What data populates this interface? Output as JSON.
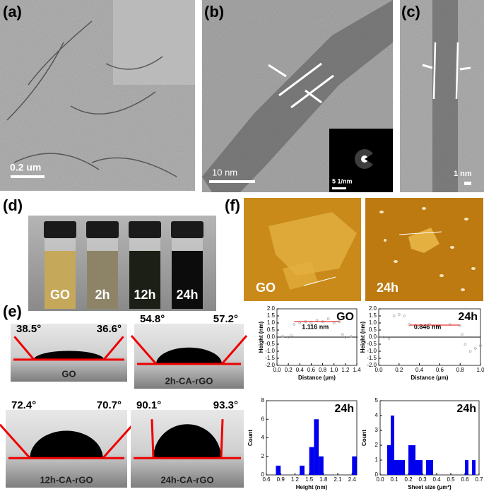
{
  "panels": {
    "a": {
      "label": "(a)",
      "scale": "0.2 um"
    },
    "b": {
      "label": "(b)",
      "scale": "10 nm",
      "inset": "5 1/nm"
    },
    "c": {
      "label": "(c)",
      "scale": "1 nm"
    },
    "d": {
      "label": "(d)",
      "vials": [
        "GO",
        "2h",
        "12h",
        "24h"
      ]
    },
    "e": {
      "label": "(e)",
      "drops": [
        {
          "name": "GO",
          "left": "38.5°",
          "right": "36.6°"
        },
        {
          "name": "2h-CA-rGO",
          "left": "54.8°",
          "right": "57.2°"
        },
        {
          "name": "12h-CA-rGO",
          "left": "72.4°",
          "right": "70.7°"
        },
        {
          "name": "24h-CA-rGO",
          "left": "90.1°",
          "right": "93.3°"
        }
      ]
    },
    "f": {
      "label": "(f)",
      "afm": [
        "GO",
        "24h"
      ]
    }
  },
  "chart_data": [
    {
      "type": "line",
      "title": "GO",
      "annotation": "1.116 nm",
      "x_label": "Distance (μm)",
      "y_label": "Height (nm)",
      "xlim": [
        0,
        1.4
      ],
      "ylim": [
        -2,
        2
      ],
      "xticks": [
        {
          "value": 0,
          "label": "0.0"
        },
        0.2,
        0.4,
        0.6,
        0.8,
        {
          "value": 1,
          "label": "1.0"
        },
        1.2,
        1.4
      ],
      "yticks": [
        {
          "value": -2,
          "label": "-2.0"
        },
        -1.5,
        {
          "value": -1,
          "label": "-1.0"
        },
        -0.5,
        {
          "value": 0,
          "label": "0.0"
        },
        0.5,
        {
          "value": 1,
          "label": "1.0"
        },
        1.5,
        {
          "value": 2,
          "label": "2.0"
        }
      ],
      "series": [
        {
          "color": "#000000",
          "x": [
            0,
            1.4
          ],
          "values": [
            0,
            0
          ]
        },
        {
          "color": "#999999",
          "markers": true,
          "x": [
            0,
            0.1,
            0.2,
            0.25,
            0.3,
            0.4,
            0.5,
            0.6,
            0.7,
            0.8,
            0.9,
            1.0,
            1.1,
            1.15,
            1.2,
            1.3,
            1.4
          ],
          "values": [
            0,
            0.05,
            0,
            0.1,
            0.9,
            1.0,
            1.1,
            1.0,
            1.2,
            1.1,
            1.3,
            1.0,
            1.1,
            0.2,
            0,
            0.05,
            0
          ]
        },
        {
          "color": "#e00000",
          "x": [
            0.3,
            1.1
          ],
          "values": [
            1.1,
            1.1
          ]
        }
      ]
    },
    {
      "type": "line",
      "title": "24h",
      "annotation": "0.846 nm",
      "x_label": "Distance (μm)",
      "y_label": "Height (nm)",
      "xlim": [
        0,
        1
      ],
      "ylim": [
        -2,
        2
      ],
      "xticks": [
        {
          "value": 0,
          "label": "0.0"
        },
        0.2,
        0.4,
        0.6,
        0.8,
        {
          "value": 1,
          "label": "1.0"
        }
      ],
      "yticks": [
        {
          "value": -2,
          "label": "-2.0"
        },
        -1.5,
        {
          "value": -1,
          "label": "-1.0"
        },
        -0.5,
        {
          "value": 0,
          "label": "0.0"
        },
        0.5,
        {
          "value": 1,
          "label": "1.0"
        },
        1.5,
        {
          "value": 2,
          "label": "2.0"
        }
      ],
      "series": [
        {
          "color": "#000000",
          "x": [
            0,
            1
          ],
          "values": [
            0,
            0
          ]
        },
        {
          "color": "#999999",
          "markers": true,
          "x": [
            0,
            0.05,
            0.1,
            0.15,
            0.2,
            0.25,
            0.3,
            0.4,
            0.5,
            0.6,
            0.7,
            0.8,
            0.82,
            0.85,
            0.9,
            0.95,
            1.0
          ],
          "values": [
            0,
            0,
            -0.1,
            1.5,
            1.6,
            1.5,
            0.9,
            0.8,
            0.9,
            0.8,
            0.9,
            0.8,
            0.2,
            -0.5,
            -1.0,
            -0.8,
            -0.6
          ]
        },
        {
          "color": "#e00000",
          "x": [
            0.3,
            0.8
          ],
          "values": [
            0.85,
            0.85
          ]
        }
      ]
    },
    {
      "type": "histogram",
      "title": "24h",
      "x_label": "Height (nm)",
      "y_label": "Count",
      "color": "#0000ee",
      "xlim": [
        0.6,
        2.5
      ],
      "ylim": [
        0,
        8
      ],
      "xticks": [
        0.6,
        0.9,
        1.2,
        1.5,
        1.8,
        2.1,
        2.4
      ],
      "yticks": [
        0,
        2,
        4,
        6,
        8
      ],
      "bins": [
        0.8,
        0.9,
        1.0,
        1.1,
        1.2,
        1.3,
        1.4,
        1.5,
        1.6,
        1.7,
        1.8,
        1.9,
        2.0,
        2.1,
        2.2,
        2.3,
        2.4,
        2.5
      ],
      "values": [
        1,
        0,
        0,
        0,
        0,
        1,
        0,
        3,
        6,
        2,
        0,
        0,
        0,
        0,
        0,
        0,
        2
      ]
    },
    {
      "type": "histogram",
      "title": "24h",
      "x_label": "Sheet size (μm²)",
      "y_label": "Count",
      "color": "#0000ee",
      "xlim": [
        0,
        0.7
      ],
      "ylim": [
        0,
        5
      ],
      "xticks": [
        {
          "value": 0,
          "label": "0.0"
        },
        0.1,
        0.2,
        0.3,
        0.4,
        0.5,
        0.6,
        0.7
      ],
      "yticks": [
        0,
        1,
        2,
        3,
        4,
        5
      ],
      "bins": [
        0.05,
        0.075,
        0.1,
        0.125,
        0.15,
        0.175,
        0.2,
        0.225,
        0.25,
        0.275,
        0.3,
        0.325,
        0.35,
        0.375,
        0.4,
        0.425,
        0.45,
        0.475,
        0.5,
        0.525,
        0.55,
        0.575,
        0.6,
        0.625,
        0.65,
        0.675
      ],
      "values": [
        2,
        4,
        1,
        1,
        1,
        0,
        2,
        2,
        1,
        1,
        0,
        1,
        1,
        0,
        0,
        0,
        0,
        0,
        0,
        0,
        0,
        0,
        1,
        0,
        1
      ]
    }
  ]
}
